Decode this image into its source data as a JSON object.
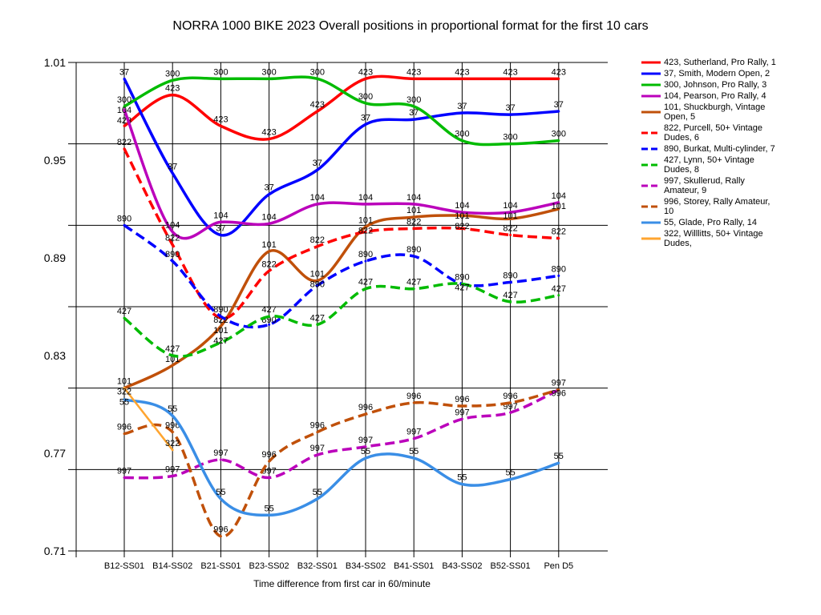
{
  "chart_data": {
    "type": "line",
    "title": "NORRA 1000 BIKE 2023  Overall positions in proportional format for the first 10 cars",
    "xlabel": "Time difference from first car in 60/minute",
    "ylabel": "",
    "categories": [
      "B12-SS01",
      "B14-SS02",
      "B21-SS01",
      "B23-SS02",
      "B32-SS01",
      "B34-SS02",
      "B41-SS01",
      "B43-SS02",
      "B52-SS01",
      "Pen D5"
    ],
    "ylim": [
      0.71,
      1.01
    ],
    "yticks": [
      "1.01",
      "0.95",
      "0.89",
      "0.83",
      "0.77",
      "0.71"
    ],
    "grid": true,
    "legend_position": "right",
    "series": [
      {
        "id": "423",
        "name": "423, Sutherland, Pro Rally, 1",
        "color": "#ff0000",
        "dashed": false,
        "values": [
          0.971,
          0.99,
          0.971,
          0.963,
          0.98,
          1.0,
          1.0,
          1.0,
          1.0,
          1.0
        ]
      },
      {
        "id": "37",
        "name": "37, Smith, Modern Open, 2",
        "color": "#0000ff",
        "dashed": false,
        "values": [
          1.0,
          0.942,
          0.904,
          0.929,
          0.944,
          0.972,
          0.975,
          0.979,
          0.978,
          0.98
        ]
      },
      {
        "id": "300",
        "name": "300, Johnson, Pro Rally, 3",
        "color": "#00bb00",
        "dashed": false,
        "values": [
          0.983,
          0.999,
          1.0,
          1.0,
          1.0,
          0.985,
          0.983,
          0.962,
          0.96,
          0.962
        ]
      },
      {
        "id": "104",
        "name": "104, Pearson, Pro Rally, 4",
        "color": "#bb00bb",
        "dashed": false,
        "values": [
          0.981,
          0.906,
          0.912,
          0.911,
          0.923,
          0.923,
          0.923,
          0.918,
          0.918,
          0.924
        ]
      },
      {
        "id": "101",
        "name": "101, Shuckburgh, Vintage Open, 5",
        "color": "#c0500a",
        "dashed": false,
        "values": [
          0.81,
          0.824,
          0.848,
          0.894,
          0.876,
          0.909,
          0.915,
          0.916,
          0.914,
          0.92
        ]
      },
      {
        "id": "822",
        "name": "822, Purcell, 50+ Vintage Dudes, 6",
        "color": "#ff0000",
        "dashed": true,
        "values": [
          0.957,
          0.898,
          0.853,
          0.882,
          0.897,
          0.906,
          0.908,
          0.908,
          0.904,
          0.902
        ]
      },
      {
        "id": "890",
        "name": "890, Burkat, Multi-cylinder, 7",
        "color": "#0000ff",
        "dashed": true,
        "values": [
          0.91,
          0.888,
          0.854,
          0.849,
          0.873,
          0.888,
          0.891,
          0.874,
          0.875,
          0.879
        ]
      },
      {
        "id": "427",
        "name": "427, Lynn, 50+ Vintage Dudes, 8",
        "color": "#00bb00",
        "dashed": true,
        "values": [
          0.853,
          0.83,
          0.838,
          0.854,
          0.849,
          0.871,
          0.871,
          0.874,
          0.863,
          0.867
        ]
      },
      {
        "id": "997",
        "name": "997, Skullerud, Rally Amateur, 9",
        "color": "#bb00bb",
        "dashed": true,
        "values": [
          0.755,
          0.756,
          0.766,
          0.755,
          0.769,
          0.774,
          0.779,
          0.791,
          0.795,
          0.809
        ]
      },
      {
        "id": "996",
        "name": "996, Storey, Rally Amateur, 10",
        "color": "#c0500a",
        "dashed": true,
        "values": [
          0.782,
          0.783,
          0.719,
          0.765,
          0.783,
          0.794,
          0.801,
          0.799,
          0.801,
          0.809
        ]
      },
      {
        "id": "55",
        "name": "55, Glade, Pro Rally, 14",
        "color": "#3a8ee6",
        "dashed": false,
        "values": [
          0.803,
          0.793,
          0.742,
          0.732,
          0.742,
          0.767,
          0.767,
          0.751,
          0.754,
          0.764
        ]
      },
      {
        "id": "322",
        "name": "322, Willlitts, 50+ Vintage Dudes,",
        "color": "#ffa530",
        "dashed": false,
        "values": [
          0.81,
          0.772,
          null,
          null,
          null,
          null,
          null,
          null,
          null,
          null
        ]
      }
    ]
  }
}
